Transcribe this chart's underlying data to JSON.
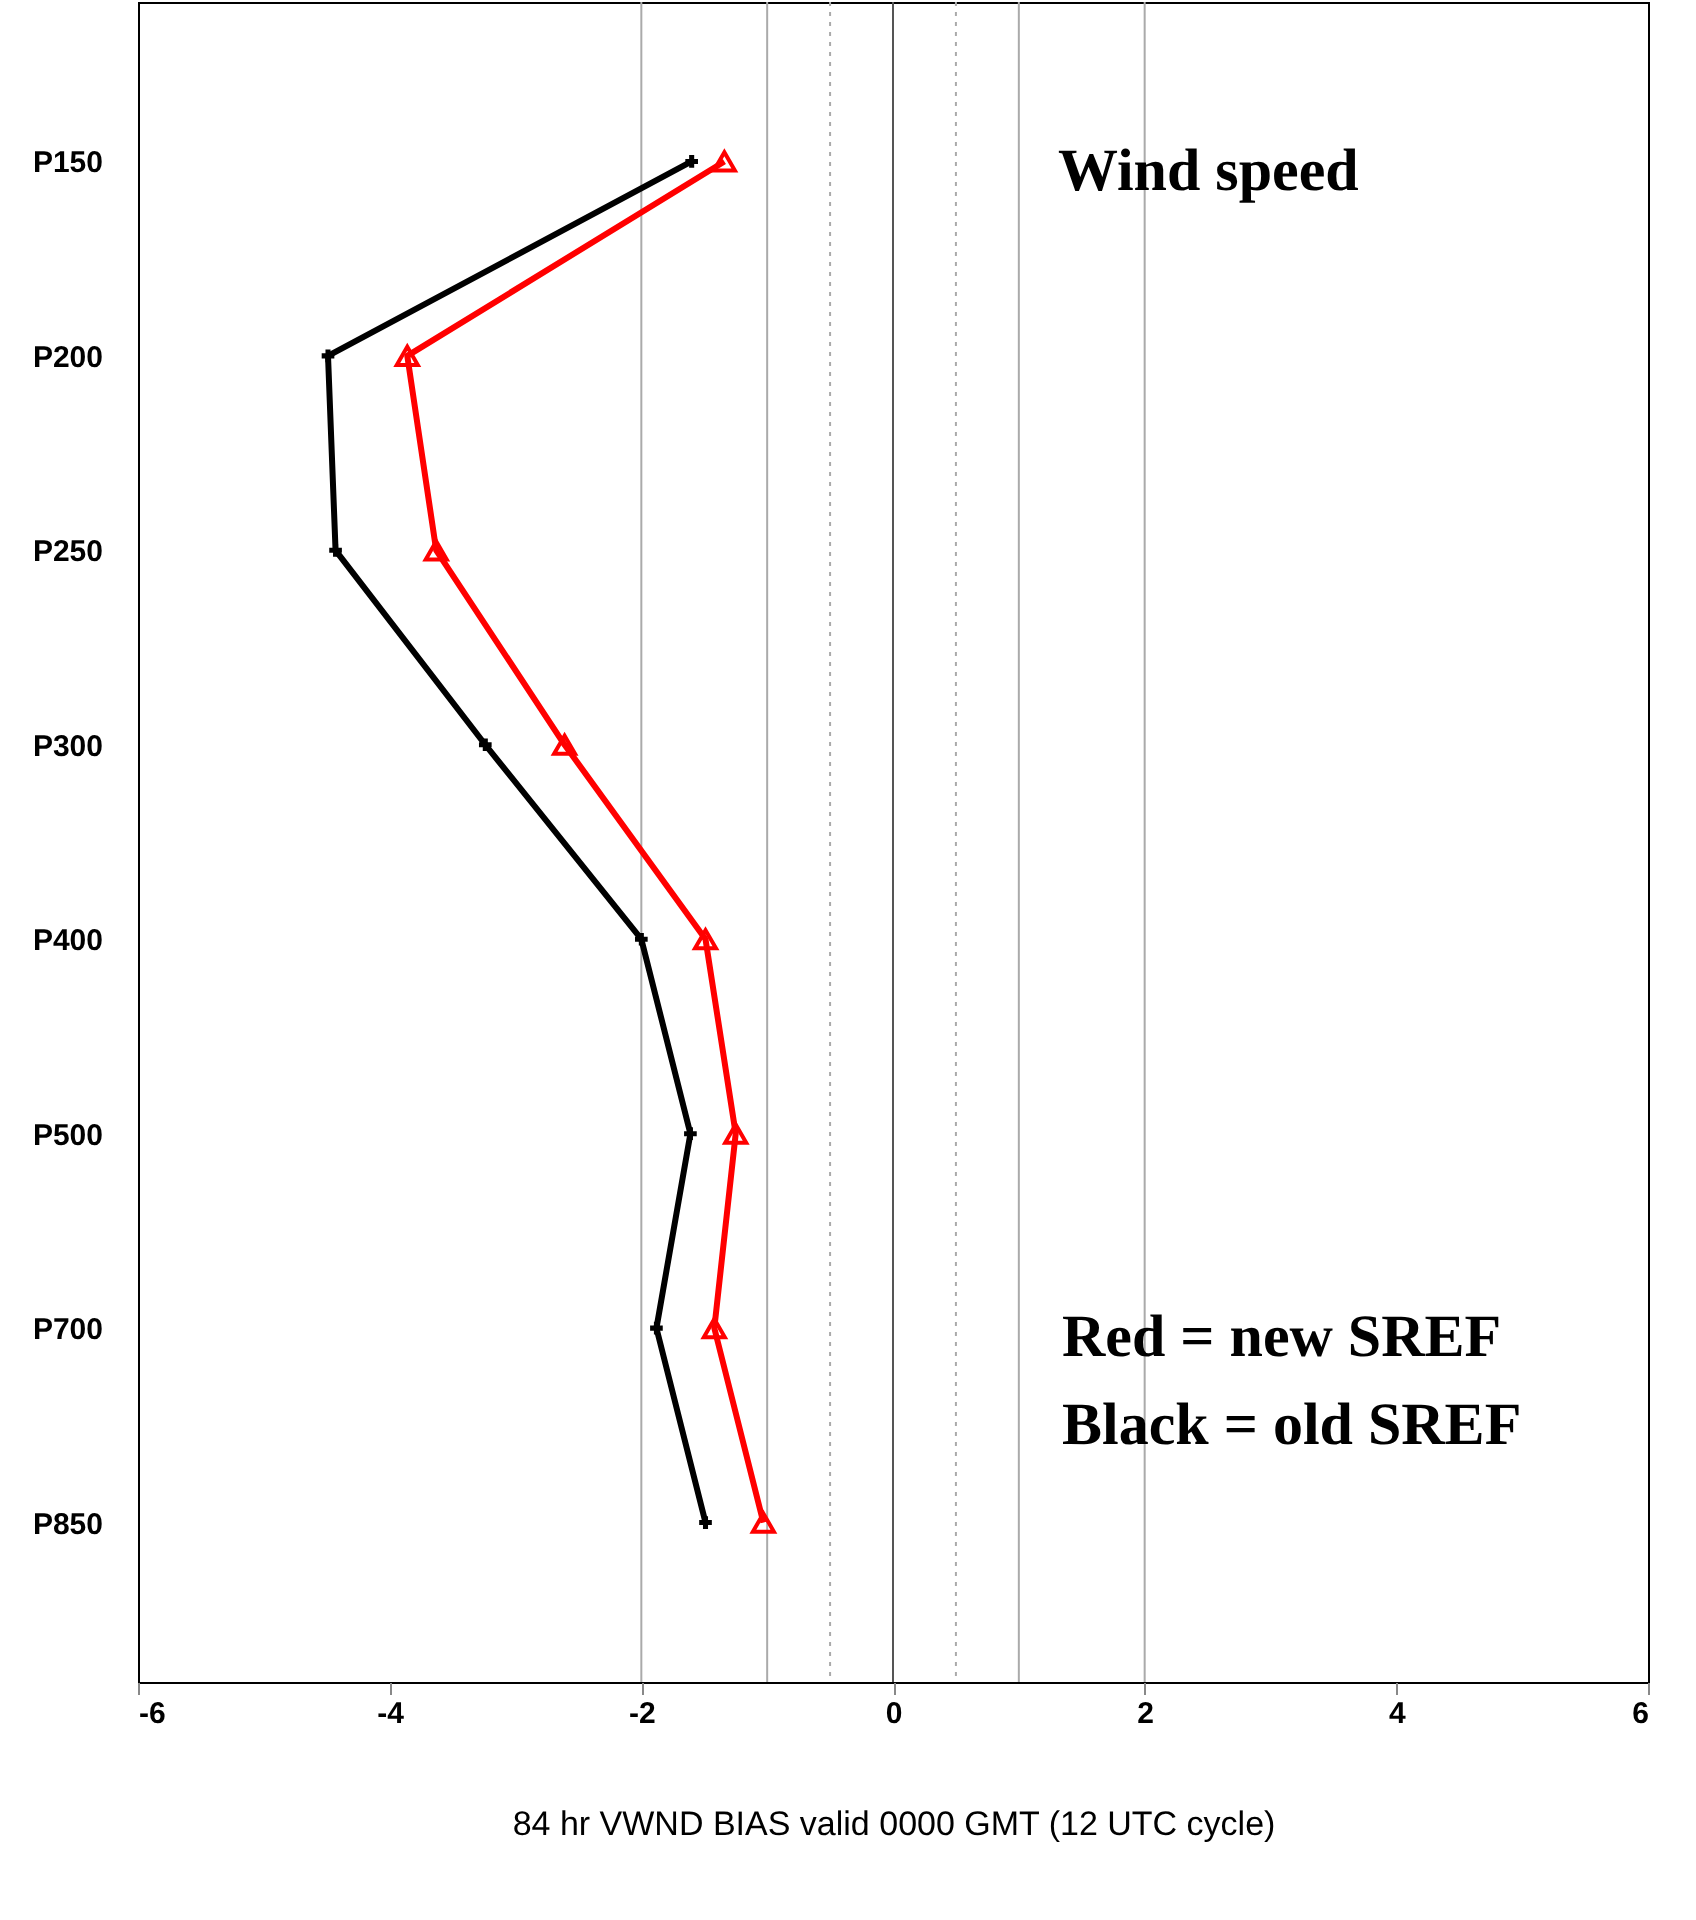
{
  "chart_data": {
    "type": "line",
    "orientation": "horizontal",
    "xlabel": "84 hr VWND BIAS valid 0000 GMT (12 UTC cycle)",
    "categories": [
      "P150",
      "P200",
      "P250",
      "P300",
      "P400",
      "P500",
      "P700",
      "P850"
    ],
    "series": [
      {
        "color": "#000000",
        "marker": "cross",
        "values": [
          -1.6,
          -4.49,
          -4.43,
          -3.24,
          -2.0,
          -1.61,
          -1.88,
          -1.49
        ]
      },
      {
        "color": "#ff0000",
        "marker": "triangle",
        "values": [
          -1.34,
          -3.86,
          -3.63,
          -2.61,
          -1.49,
          -1.25,
          -1.42,
          -1.03
        ]
      }
    ],
    "xlim": [
      -6,
      6
    ],
    "xticks": [
      -6,
      -4,
      -2,
      0,
      2,
      4,
      6
    ],
    "ref_lines": [
      {
        "axis": "x",
        "value": -2,
        "color": "#aaaaaa",
        "line_style": "solid"
      },
      {
        "axis": "x",
        "value": -1,
        "color": "#aaaaaa",
        "line_style": "solid"
      },
      {
        "axis": "x",
        "value": -0.5,
        "color": "#aaaaaa",
        "line_style": "dotted"
      },
      {
        "axis": "x",
        "value": 0,
        "color": "#555555",
        "line_style": "solid"
      },
      {
        "axis": "x",
        "value": 0.5,
        "color": "#aaaaaa",
        "line_style": "dotted"
      },
      {
        "axis": "x",
        "value": 1,
        "color": "#aaaaaa",
        "line_style": "solid"
      },
      {
        "axis": "x",
        "value": 2,
        "color": "#aaaaaa",
        "line_style": "solid"
      }
    ],
    "annotations": [
      "Wind speed",
      "Red = new SREF",
      "Black = old SREF"
    ],
    "line_style": "solid"
  }
}
